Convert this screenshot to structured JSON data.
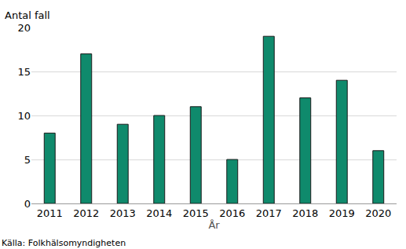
{
  "chart_data": {
    "type": "bar",
    "ylabel": "Antal fall",
    "xlabel": "År",
    "source": "Källa: Folkhälsomyndigheten",
    "categories": [
      "2011",
      "2012",
      "2013",
      "2014",
      "2015",
      "2016",
      "2017",
      "2018",
      "2019",
      "2020"
    ],
    "values": [
      8,
      17,
      9,
      10,
      11,
      5,
      19,
      12,
      14,
      6
    ],
    "color": "#0f8a6c",
    "ylim": [
      0,
      20
    ],
    "yticks": [
      0,
      5,
      10,
      15,
      20
    ],
    "grid": true
  }
}
